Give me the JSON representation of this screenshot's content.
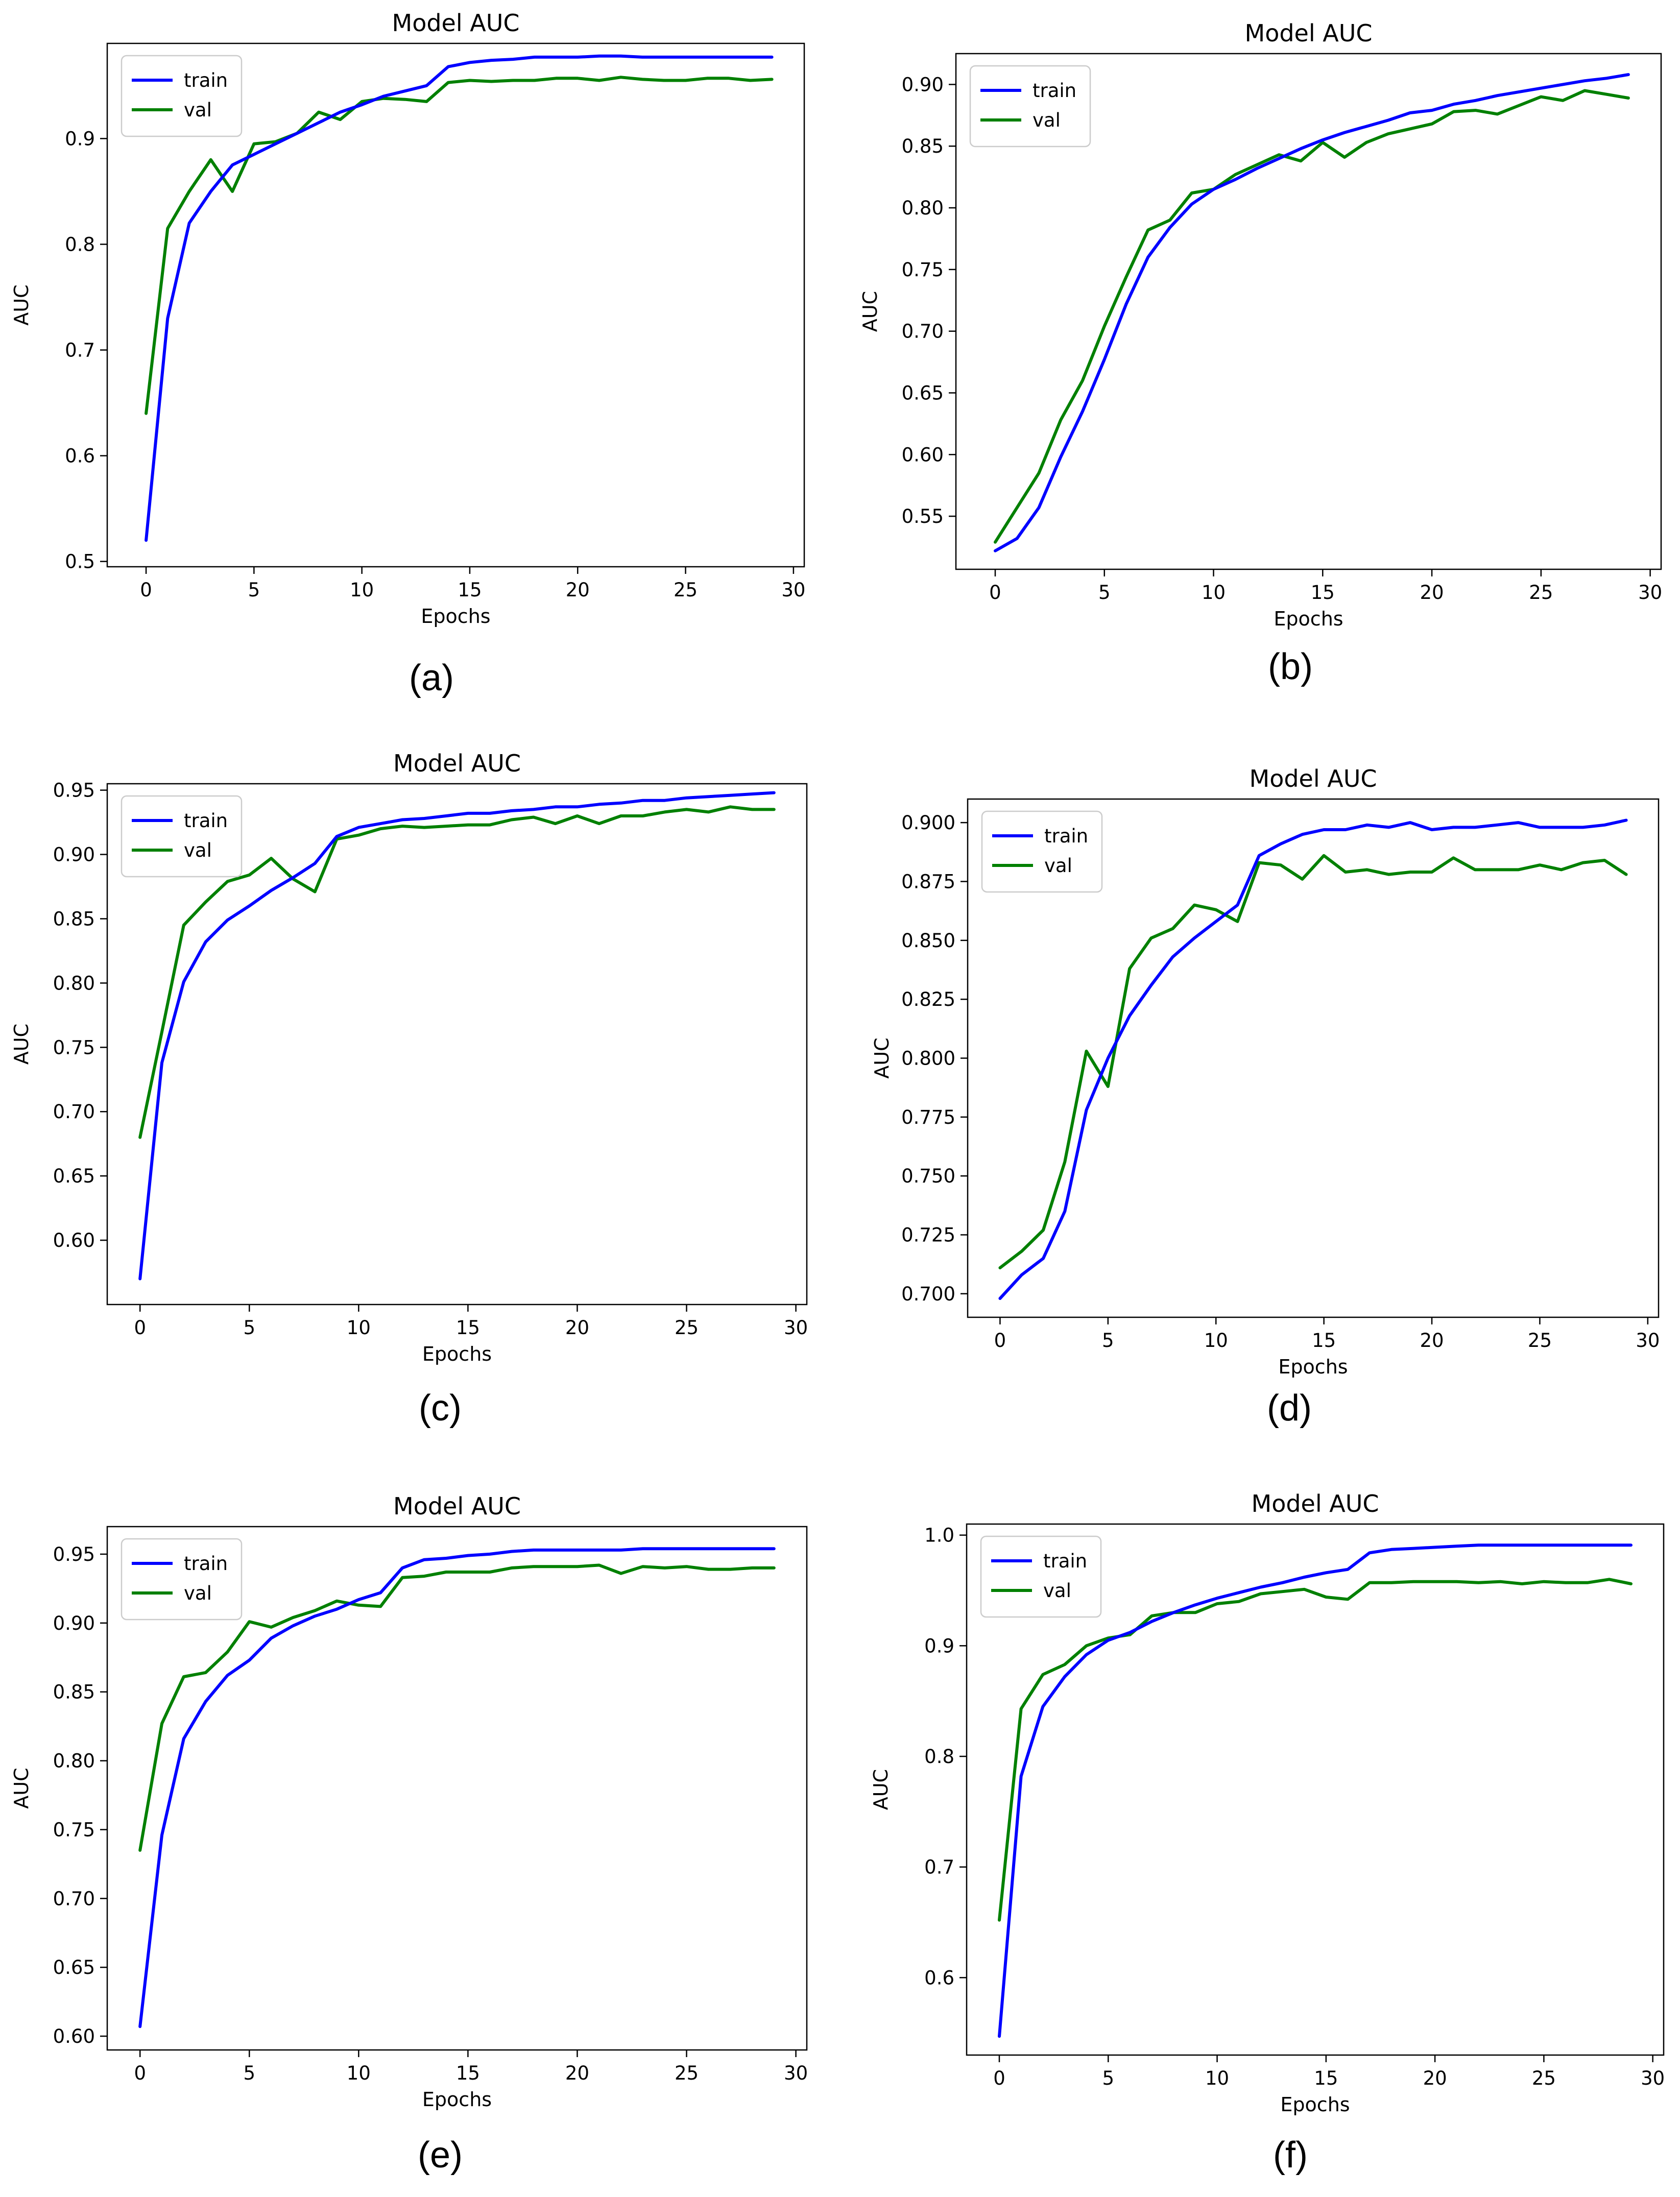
{
  "chart_data": [
    {
      "panel": "(a)",
      "type": "line",
      "title": "Model AUC",
      "xlabel": "Epochs",
      "ylabel": "AUC",
      "xlim": [
        -1.8,
        30.5
      ],
      "ylim": [
        0.495,
        0.99
      ],
      "xticks": [
        0,
        5,
        10,
        15,
        20,
        25,
        30
      ],
      "yticks": [
        0.5,
        0.6,
        0.7,
        0.8,
        0.9
      ],
      "yticklabels": [
        "0.5",
        "0.6",
        "0.7",
        "0.8",
        "0.9"
      ],
      "legend": "top-left",
      "grid": false,
      "x": [
        0,
        1,
        2,
        3,
        4,
        5,
        6,
        7,
        8,
        9,
        10,
        11,
        12,
        13,
        14,
        15,
        16,
        17,
        18,
        19,
        20,
        21,
        22,
        23,
        24,
        25,
        26,
        27,
        28,
        29
      ],
      "series": [
        {
          "name": "train",
          "color": "#0000ff",
          "values": [
            0.52,
            0.73,
            0.82,
            0.85,
            0.875,
            0.885,
            0.895,
            0.905,
            0.915,
            0.925,
            0.932,
            0.94,
            0.945,
            0.95,
            0.968,
            0.972,
            0.974,
            0.975,
            0.977,
            0.977,
            0.977,
            0.978,
            0.978,
            0.977,
            0.977,
            0.977,
            0.977,
            0.977,
            0.977,
            0.977
          ]
        },
        {
          "name": "val",
          "color": "#008000",
          "values": [
            0.64,
            0.815,
            0.85,
            0.88,
            0.85,
            0.895,
            0.897,
            0.905,
            0.925,
            0.918,
            0.935,
            0.938,
            0.937,
            0.935,
            0.953,
            0.955,
            0.954,
            0.955,
            0.955,
            0.957,
            0.957,
            0.955,
            0.958,
            0.956,
            0.955,
            0.955,
            0.957,
            0.957,
            0.955,
            0.956
          ]
        }
      ]
    },
    {
      "panel": "(b)",
      "type": "line",
      "title": "Model AUC",
      "xlabel": "Epochs",
      "ylabel": "AUC",
      "xlim": [
        -1.8,
        30.5
      ],
      "ylim": [
        0.507,
        0.925
      ],
      "xticks": [
        0,
        5,
        10,
        15,
        20,
        25,
        30
      ],
      "yticks": [
        0.55,
        0.6,
        0.65,
        0.7,
        0.75,
        0.8,
        0.85,
        0.9
      ],
      "yticklabels": [
        "0.55",
        "0.60",
        "0.65",
        "0.70",
        "0.75",
        "0.80",
        "0.85",
        "0.90"
      ],
      "legend": "top-left",
      "grid": false,
      "x": [
        0,
        1,
        2,
        3,
        4,
        5,
        6,
        7,
        8,
        9,
        10,
        11,
        12,
        13,
        14,
        15,
        16,
        17,
        18,
        19,
        20,
        21,
        22,
        23,
        24,
        25,
        26,
        27,
        28,
        29
      ],
      "series": [
        {
          "name": "train",
          "color": "#0000ff",
          "values": [
            0.522,
            0.532,
            0.557,
            0.598,
            0.635,
            0.677,
            0.722,
            0.76,
            0.784,
            0.803,
            0.815,
            0.823,
            0.832,
            0.84,
            0.848,
            0.855,
            0.861,
            0.866,
            0.871,
            0.877,
            0.879,
            0.884,
            0.887,
            0.891,
            0.894,
            0.897,
            0.9,
            0.903,
            0.905,
            0.908
          ]
        },
        {
          "name": "val",
          "color": "#008000",
          "values": [
            0.529,
            0.557,
            0.585,
            0.628,
            0.66,
            0.704,
            0.744,
            0.782,
            0.79,
            0.812,
            0.815,
            0.827,
            0.835,
            0.843,
            0.838,
            0.853,
            0.841,
            0.853,
            0.86,
            0.864,
            0.868,
            0.878,
            0.879,
            0.876,
            0.883,
            0.89,
            0.887,
            0.895,
            0.892,
            0.889
          ]
        }
      ]
    },
    {
      "panel": "(c)",
      "type": "line",
      "title": "Model AUC",
      "xlabel": "Epochs",
      "ylabel": "AUC",
      "xlim": [
        -1.5,
        30.5
      ],
      "ylim": [
        0.55,
        0.955
      ],
      "xticks": [
        0,
        5,
        10,
        15,
        20,
        25,
        30
      ],
      "yticks": [
        0.6,
        0.65,
        0.7,
        0.75,
        0.8,
        0.85,
        0.9,
        0.95
      ],
      "yticklabels": [
        "0.60",
        "0.65",
        "0.70",
        "0.75",
        "0.80",
        "0.85",
        "0.90",
        "0.95"
      ],
      "legend": "top-left",
      "grid": false,
      "x": [
        0,
        1,
        2,
        3,
        4,
        5,
        6,
        7,
        8,
        9,
        10,
        11,
        12,
        13,
        14,
        15,
        16,
        17,
        18,
        19,
        20,
        21,
        22,
        23,
        24,
        25,
        26,
        27,
        28,
        29
      ],
      "series": [
        {
          "name": "train",
          "color": "#0000ff",
          "values": [
            0.57,
            0.738,
            0.801,
            0.832,
            0.849,
            0.86,
            0.872,
            0.882,
            0.893,
            0.914,
            0.921,
            0.924,
            0.927,
            0.928,
            0.93,
            0.932,
            0.932,
            0.934,
            0.935,
            0.937,
            0.937,
            0.939,
            0.94,
            0.942,
            0.942,
            0.944,
            0.945,
            0.946,
            0.947,
            0.948
          ]
        },
        {
          "name": "val",
          "color": "#008000",
          "values": [
            0.68,
            0.762,
            0.845,
            0.863,
            0.879,
            0.884,
            0.897,
            0.881,
            0.871,
            0.912,
            0.915,
            0.92,
            0.922,
            0.921,
            0.922,
            0.923,
            0.923,
            0.927,
            0.929,
            0.924,
            0.93,
            0.924,
            0.93,
            0.93,
            0.933,
            0.935,
            0.933,
            0.937,
            0.935,
            0.935
          ]
        }
      ]
    },
    {
      "panel": "(d)",
      "type": "line",
      "title": "Model AUC",
      "xlabel": "Epochs",
      "ylabel": "AUC",
      "xlim": [
        -1.5,
        30.5
      ],
      "ylim": [
        0.69,
        0.91
      ],
      "xticks": [
        0,
        5,
        10,
        15,
        20,
        25,
        30
      ],
      "yticks": [
        0.7,
        0.725,
        0.75,
        0.775,
        0.8,
        0.825,
        0.85,
        0.875,
        0.9
      ],
      "yticklabels": [
        "0.700",
        "0.725",
        "0.750",
        "0.775",
        "0.800",
        "0.825",
        "0.850",
        "0.875",
        "0.900"
      ],
      "legend": "top-left",
      "grid": false,
      "x": [
        0,
        1,
        2,
        3,
        4,
        5,
        6,
        7,
        8,
        9,
        10,
        11,
        12,
        13,
        14,
        15,
        16,
        17,
        18,
        19,
        20,
        21,
        22,
        23,
        24,
        25,
        26,
        27,
        28,
        29
      ],
      "series": [
        {
          "name": "train",
          "color": "#0000ff",
          "values": [
            0.698,
            0.708,
            0.715,
            0.735,
            0.778,
            0.8,
            0.818,
            0.831,
            0.843,
            0.851,
            0.858,
            0.865,
            0.886,
            0.891,
            0.895,
            0.897,
            0.897,
            0.899,
            0.898,
            0.9,
            0.897,
            0.898,
            0.898,
            0.899,
            0.9,
            0.898,
            0.898,
            0.898,
            0.899,
            0.901
          ]
        },
        {
          "name": "val",
          "color": "#008000",
          "values": [
            0.711,
            0.718,
            0.727,
            0.756,
            0.803,
            0.788,
            0.838,
            0.851,
            0.855,
            0.865,
            0.863,
            0.858,
            0.883,
            0.882,
            0.876,
            0.886,
            0.879,
            0.88,
            0.878,
            0.879,
            0.879,
            0.885,
            0.88,
            0.88,
            0.88,
            0.882,
            0.88,
            0.883,
            0.884,
            0.878
          ]
        }
      ]
    },
    {
      "panel": "(e)",
      "type": "line",
      "title": "Model AUC",
      "xlabel": "Epochs",
      "ylabel": "AUC",
      "xlim": [
        -1.5,
        30.5
      ],
      "ylim": [
        0.59,
        0.97
      ],
      "xticks": [
        0,
        5,
        10,
        15,
        20,
        25,
        30
      ],
      "yticks": [
        0.6,
        0.65,
        0.7,
        0.75,
        0.8,
        0.85,
        0.9,
        0.95
      ],
      "yticklabels": [
        "0.60",
        "0.65",
        "0.70",
        "0.75",
        "0.80",
        "0.85",
        "0.90",
        "0.95"
      ],
      "legend": "top-left",
      "grid": false,
      "x": [
        0,
        1,
        2,
        3,
        4,
        5,
        6,
        7,
        8,
        9,
        10,
        11,
        12,
        13,
        14,
        15,
        16,
        17,
        18,
        19,
        20,
        21,
        22,
        23,
        24,
        25,
        26,
        27,
        28,
        29
      ],
      "series": [
        {
          "name": "train",
          "color": "#0000ff",
          "values": [
            0.607,
            0.746,
            0.816,
            0.843,
            0.862,
            0.873,
            0.889,
            0.898,
            0.905,
            0.91,
            0.917,
            0.922,
            0.94,
            0.946,
            0.947,
            0.949,
            0.95,
            0.952,
            0.953,
            0.953,
            0.953,
            0.953,
            0.953,
            0.954,
            0.954,
            0.954,
            0.954,
            0.954,
            0.954,
            0.954
          ]
        },
        {
          "name": "val",
          "color": "#008000",
          "values": [
            0.735,
            0.827,
            0.861,
            0.864,
            0.879,
            0.901,
            0.897,
            0.904,
            0.909,
            0.916,
            0.913,
            0.912,
            0.933,
            0.934,
            0.937,
            0.937,
            0.937,
            0.94,
            0.941,
            0.941,
            0.941,
            0.942,
            0.936,
            0.941,
            0.94,
            0.941,
            0.939,
            0.939,
            0.94,
            0.94
          ]
        }
      ]
    },
    {
      "panel": "(f)",
      "type": "line",
      "title": "Model AUC",
      "xlabel": "Epochs",
      "ylabel": "AUC",
      "xlim": [
        -1.5,
        30.5
      ],
      "ylim": [
        0.53,
        1.01
      ],
      "xticks": [
        0,
        5,
        10,
        15,
        20,
        25,
        30
      ],
      "yticks": [
        0.6,
        0.7,
        0.8,
        0.9,
        1.0
      ],
      "yticklabels": [
        "0.6",
        "0.7",
        "0.8",
        "0.9",
        "1.0"
      ],
      "legend": "top-left",
      "grid": false,
      "x": [
        0,
        1,
        2,
        3,
        4,
        5,
        6,
        7,
        8,
        9,
        10,
        11,
        12,
        13,
        14,
        15,
        16,
        17,
        18,
        19,
        20,
        21,
        22,
        23,
        24,
        25,
        26,
        27,
        28,
        29
      ],
      "series": [
        {
          "name": "train",
          "color": "#0000ff",
          "values": [
            0.547,
            0.782,
            0.845,
            0.872,
            0.892,
            0.905,
            0.912,
            0.922,
            0.93,
            0.937,
            0.943,
            0.948,
            0.953,
            0.957,
            0.962,
            0.966,
            0.969,
            0.984,
            0.987,
            0.988,
            0.989,
            0.99,
            0.991,
            0.991,
            0.991,
            0.991,
            0.991,
            0.991,
            0.991,
            0.991
          ]
        },
        {
          "name": "val",
          "color": "#008000",
          "values": [
            0.652,
            0.843,
            0.874,
            0.883,
            0.9,
            0.907,
            0.91,
            0.927,
            0.93,
            0.93,
            0.938,
            0.94,
            0.947,
            0.949,
            0.951,
            0.944,
            0.942,
            0.957,
            0.957,
            0.958,
            0.958,
            0.958,
            0.957,
            0.958,
            0.956,
            0.958,
            0.957,
            0.957,
            0.96,
            0.956
          ]
        }
      ]
    }
  ]
}
